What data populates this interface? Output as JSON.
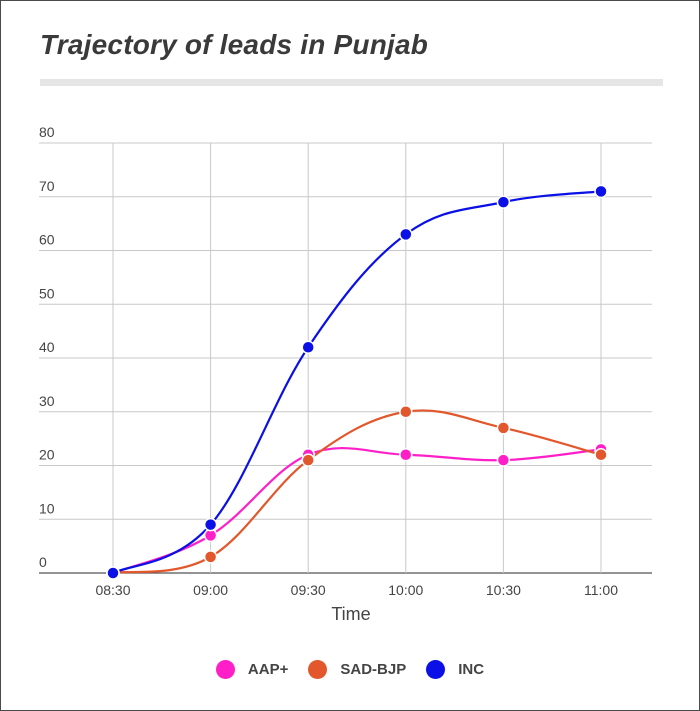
{
  "title": "Trajectory of leads in Punjab",
  "chart_data": {
    "type": "line",
    "title": "Trajectory of leads in Punjab",
    "xlabel": "Time",
    "ylabel": "",
    "categories": [
      "08:30",
      "09:00",
      "09:30",
      "10:00",
      "10:30",
      "11:00"
    ],
    "ylim": [
      0,
      80
    ],
    "yticks": [
      0,
      10,
      20,
      30,
      40,
      50,
      60,
      70,
      80
    ],
    "grid": true,
    "legend_position": "bottom",
    "smooth": true,
    "series": [
      {
        "name": "AAP+",
        "color": "#ff1fc8",
        "values": [
          0,
          7,
          22,
          22,
          21,
          23
        ]
      },
      {
        "name": "SAD-BJP",
        "color": "#e2572b",
        "values": [
          0,
          3,
          21,
          30,
          27,
          22
        ]
      },
      {
        "name": "INC",
        "color": "#0a10e6",
        "values": [
          0,
          9,
          42,
          63,
          69,
          71
        ]
      }
    ]
  }
}
